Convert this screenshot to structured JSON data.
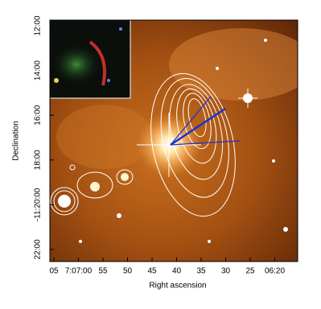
{
  "x_axis": {
    "label": "Right ascension",
    "ticks": [
      "05",
      "7:07:00",
      "55",
      "50",
      "45",
      "40",
      "35",
      "30",
      "25",
      "06:20"
    ]
  },
  "y_axis": {
    "label": "Declination",
    "ticks": [
      "12:00",
      "14:00",
      "16:00",
      "18:00",
      "-11:20:00",
      "22:00"
    ]
  }
}
